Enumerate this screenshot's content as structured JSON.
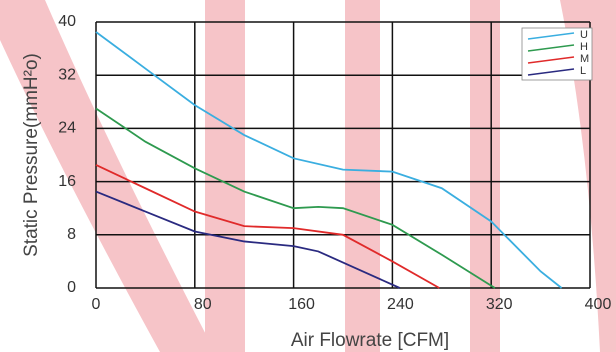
{
  "chart_data": {
    "type": "line",
    "x_label": "Air Flowrate  [CFM]",
    "y_label": "Static Pressure(mmH²o)",
    "xlim": [
      0,
      400
    ],
    "xticks": [
      0,
      80,
      160,
      240,
      320,
      400
    ],
    "ylim": [
      0,
      40
    ],
    "yticks": [
      0,
      8,
      16,
      24,
      32,
      40
    ],
    "grid": true,
    "legend": "upper right",
    "series": [
      {
        "name": "U",
        "color": "#3aaee0",
        "x": [
          0,
          40,
          80,
          120,
          160,
          200,
          240,
          280,
          320,
          360,
          377
        ],
        "values": [
          38.5,
          33,
          27.5,
          23,
          19.5,
          17.8,
          17.5,
          15,
          10,
          2.5,
          0
        ]
      },
      {
        "name": "H",
        "color": "#2e9a4f",
        "x": [
          0,
          40,
          80,
          120,
          160,
          180,
          200,
          240,
          280,
          323
        ],
        "values": [
          27,
          22,
          18,
          14.5,
          12,
          12.2,
          12,
          9.5,
          5,
          0
        ]
      },
      {
        "name": "M",
        "color": "#e02a2a",
        "x": [
          0,
          40,
          80,
          120,
          160,
          200,
          240,
          278
        ],
        "values": [
          18.5,
          15,
          11.5,
          9.3,
          9,
          8,
          4,
          0
        ]
      },
      {
        "name": "L",
        "color": "#2a2a80",
        "x": [
          0,
          40,
          80,
          120,
          160,
          180,
          210,
          246
        ],
        "values": [
          14.5,
          11.5,
          8.5,
          7,
          6.3,
          5.5,
          3,
          0
        ]
      }
    ]
  }
}
